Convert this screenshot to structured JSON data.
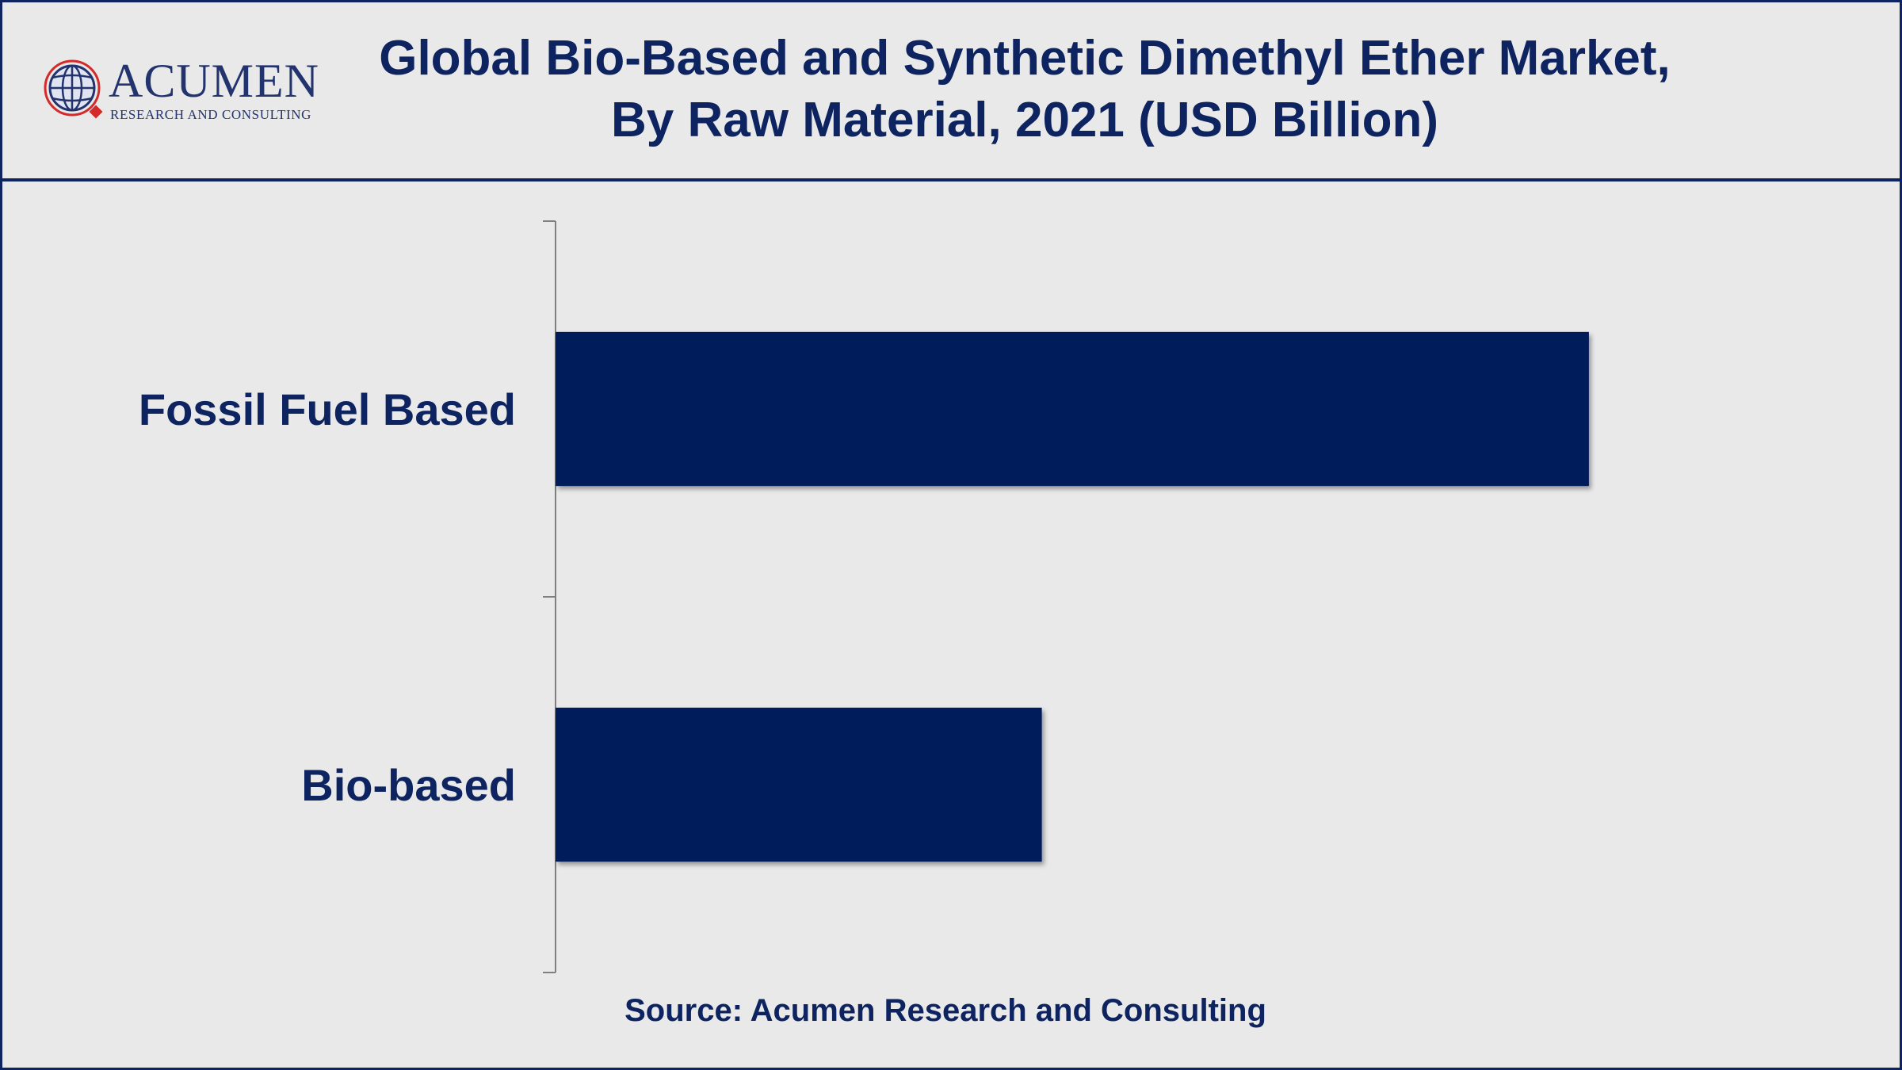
{
  "header": {
    "logo_word": "ACUMEN",
    "logo_subtitle": "RESEARCH AND CONSULTING",
    "title_line1": "Global Bio-Based and Synthetic Dimethyl Ether Market,",
    "title_line2": "By Raw Material, 2021 (USD Billion)"
  },
  "chart_data": {
    "type": "bar",
    "orientation": "horizontal",
    "title": "Global Bio-Based and Synthetic Dimethyl Ether Market, By Raw Material, 2021 (USD Billion)",
    "categories": [
      "Fossil Fuel Based",
      "Bio-based"
    ],
    "values": [
      6.8,
      3.2
    ],
    "xlim": [
      0,
      8
    ],
    "xlabel": "",
    "ylabel": "",
    "grid": false,
    "legend": "none",
    "bar_color": "#001c5a"
  },
  "footer": {
    "source": "Source: Acumen Research and Consulting"
  },
  "colors": {
    "primary": "#0d2460",
    "bar": "#001c5a",
    "background": "#e9e9ea",
    "logo_accent": "#d42a2a"
  }
}
